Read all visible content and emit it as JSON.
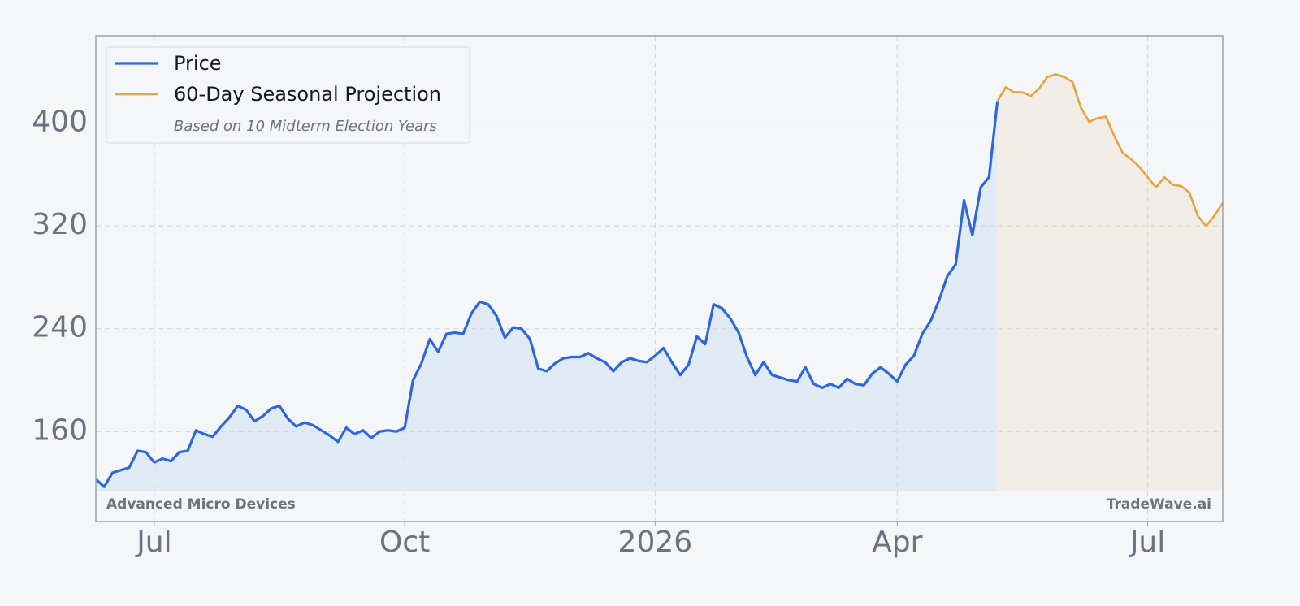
{
  "chart_data": {
    "type": "line",
    "categories": [
      null,
      null,
      null,
      null,
      null,
      null,
      null,
      "Jul",
      null,
      null,
      null,
      null,
      null,
      null,
      null,
      null,
      null,
      null,
      null,
      null,
      null,
      null,
      null,
      null,
      null,
      null,
      null,
      null,
      null,
      null,
      null,
      null,
      null,
      null,
      null,
      null,
      null,
      "Oct",
      null,
      null,
      null,
      null,
      null,
      null,
      null,
      null,
      null,
      null,
      null,
      null,
      null,
      null,
      null,
      null,
      null,
      null,
      null,
      null,
      null,
      null,
      null,
      null,
      null,
      null,
      null,
      null,
      null,
      "2026",
      null,
      null,
      null,
      null,
      null,
      null,
      null,
      null,
      null,
      null,
      null,
      null,
      null,
      null,
      null,
      null,
      null,
      null,
      null,
      null,
      null,
      null,
      null,
      null,
      null,
      null,
      null,
      null,
      "Apr",
      null,
      null,
      null,
      null,
      null,
      null,
      null,
      null,
      null,
      null,
      null,
      null,
      null,
      null,
      null,
      null,
      null,
      null,
      null,
      null,
      null,
      null,
      null,
      null,
      null,
      null,
      null,
      null,
      null,
      "Jul",
      null,
      null,
      null,
      null,
      null,
      null,
      null,
      null,
      null
    ],
    "series": [
      {
        "name": "Price",
        "color": "#2e66dd",
        "fill": "#e1ebf6",
        "values": [
          123,
          117,
          128,
          130,
          132,
          145,
          144,
          136,
          139,
          137,
          144,
          145,
          161,
          158,
          156,
          164,
          171,
          180,
          177,
          168,
          172,
          178,
          180,
          170,
          164,
          167,
          165,
          161,
          157,
          152,
          163,
          158,
          161,
          155,
          160,
          161,
          160,
          163,
          200,
          213,
          232,
          222,
          236,
          237,
          236,
          252,
          261,
          259,
          250,
          233,
          241,
          240,
          232,
          209,
          207,
          213,
          217,
          218,
          218,
          221,
          217,
          214,
          207,
          214,
          217,
          215,
          214,
          219,
          225,
          214,
          204,
          212,
          234,
          228,
          259,
          256,
          248,
          237,
          218,
          204,
          214,
          204,
          202,
          200,
          199,
          210,
          197,
          194,
          197,
          194,
          201,
          197,
          196,
          205,
          210,
          205,
          199,
          212,
          219,
          236,
          246,
          262,
          281,
          290,
          340,
          313,
          350,
          358,
          417,
          null,
          null,
          null,
          null,
          null,
          null,
          null,
          null,
          null,
          null,
          null,
          null,
          null,
          null,
          null,
          null,
          null,
          null,
          null,
          null,
          null,
          null,
          null,
          null,
          null,
          null,
          null
        ]
      },
      {
        "name": "60-Day Seasonal Projection",
        "color": "#e8a33c",
        "fill": "#f2ede6",
        "values": [
          null,
          null,
          null,
          null,
          null,
          null,
          null,
          null,
          null,
          null,
          null,
          null,
          null,
          null,
          null,
          null,
          null,
          null,
          null,
          null,
          null,
          null,
          null,
          null,
          null,
          null,
          null,
          null,
          null,
          null,
          null,
          null,
          null,
          null,
          null,
          null,
          null,
          null,
          null,
          null,
          null,
          null,
          null,
          null,
          null,
          null,
          null,
          null,
          null,
          null,
          null,
          null,
          null,
          null,
          null,
          null,
          null,
          null,
          null,
          null,
          null,
          null,
          null,
          null,
          null,
          null,
          null,
          null,
          null,
          null,
          null,
          null,
          null,
          null,
          null,
          null,
          null,
          null,
          null,
          null,
          null,
          null,
          null,
          null,
          null,
          null,
          null,
          null,
          null,
          null,
          null,
          null,
          null,
          null,
          null,
          null,
          null,
          null,
          null,
          null,
          null,
          null,
          null,
          null,
          null,
          null,
          null,
          null,
          417,
          428,
          424,
          424,
          421,
          427,
          436,
          438,
          436,
          432,
          412,
          401,
          404,
          405,
          390,
          377,
          372,
          366,
          358,
          350,
          358,
          352,
          351,
          346,
          328,
          320,
          328,
          338
        ]
      }
    ],
    "legend_note": "Based on 10 Midterm Election Years",
    "legend": "upper left",
    "annotations": [
      "Advanced Micro Devices",
      "TradeWave.ai"
    ],
    "ylim": [
      90,
      468
    ],
    "yticks": [
      160,
      240,
      320,
      400
    ],
    "grid": true
  }
}
